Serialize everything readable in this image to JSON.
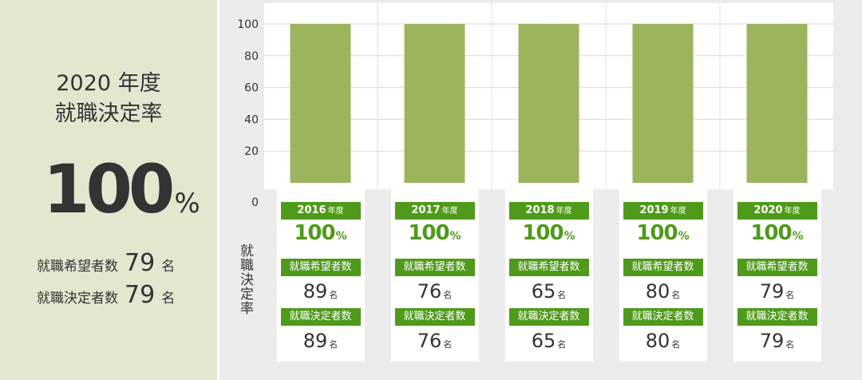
{
  "summary": {
    "title_line1": "2020 年度",
    "title_line2": "就職決定率",
    "rate": "100",
    "rate_unit": "%",
    "applicants_label": "就職希望者数",
    "applicants_value": "79",
    "decided_label": "就職決定者数",
    "decided_value": "79",
    "count_unit": "名"
  },
  "chart_data": {
    "type": "bar",
    "categories": [
      "2016",
      "2017",
      "2018",
      "2019",
      "2020"
    ],
    "values": [
      100,
      100,
      100,
      100,
      100
    ],
    "ylabel": "就職決定率",
    "ylim": [
      0,
      100
    ],
    "yticks": [
      "0",
      "20",
      "40",
      "60",
      "80",
      "100"
    ],
    "bar_color": "#9cb55c",
    "grid": true
  },
  "cards": [
    {
      "year": "2016",
      "nendo": "年度",
      "rate": "100",
      "pct": "%",
      "applicants_label": "就職希望者数",
      "applicants": "89",
      "decided_label": "就職決定者数",
      "decided": "89",
      "unit": "名"
    },
    {
      "year": "2017",
      "nendo": "年度",
      "rate": "100",
      "pct": "%",
      "applicants_label": "就職希望者数",
      "applicants": "76",
      "decided_label": "就職決定者数",
      "decided": "76",
      "unit": "名"
    },
    {
      "year": "2018",
      "nendo": "年度",
      "rate": "100",
      "pct": "%",
      "applicants_label": "就職希望者数",
      "applicants": "65",
      "decided_label": "就職決定者数",
      "decided": "65",
      "unit": "名"
    },
    {
      "year": "2019",
      "nendo": "年度",
      "rate": "100",
      "pct": "%",
      "applicants_label": "就職希望者数",
      "applicants": "80",
      "decided_label": "就職決定者数",
      "decided": "80",
      "unit": "名"
    },
    {
      "year": "2020",
      "nendo": "年度",
      "rate": "100",
      "pct": "%",
      "applicants_label": "就職希望者数",
      "applicants": "79",
      "decided_label": "就職決定者数",
      "decided": "79",
      "unit": "名"
    }
  ]
}
